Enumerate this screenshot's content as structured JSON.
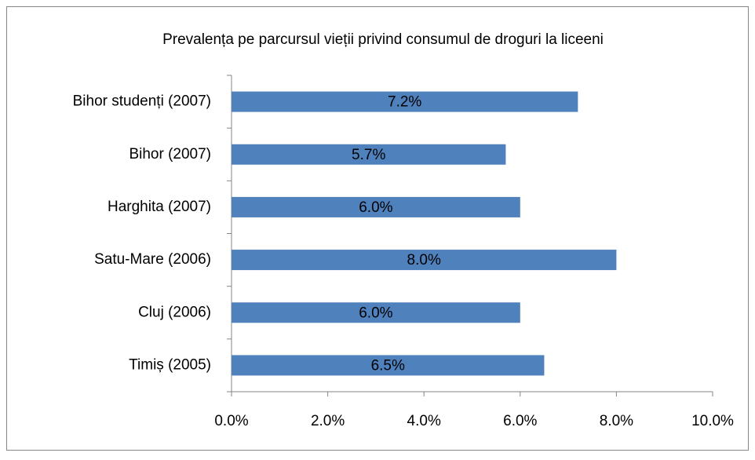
{
  "chart_data": {
    "type": "bar",
    "orientation": "horizontal",
    "title": "Prevalența pe parcursul vieții privind consumul de droguri la liceeni",
    "categories": [
      "Bihor studenți (2007)",
      "Bihor (2007)",
      "Harghita (2007)",
      "Satu-Mare (2006)",
      "Cluj (2006)",
      "Timiș (2005)"
    ],
    "values": [
      7.2,
      5.7,
      6.0,
      8.0,
      6.0,
      6.5
    ],
    "value_labels": [
      "7.2%",
      "5.7%",
      "6.0%",
      "8.0%",
      "6.0%",
      "6.5%"
    ],
    "color": "#4f81bd",
    "xlim": [
      0,
      10
    ],
    "xticks": [
      {
        "value": 0,
        "label": "0.0%"
      },
      {
        "value": 2,
        "label": "2.0%"
      },
      {
        "value": 4,
        "label": "4.0%"
      },
      {
        "value": 6,
        "label": "6.0%"
      },
      {
        "value": 8,
        "label": "8.0%"
      },
      {
        "value": 10,
        "label": "10.0%"
      }
    ],
    "grid": false
  }
}
